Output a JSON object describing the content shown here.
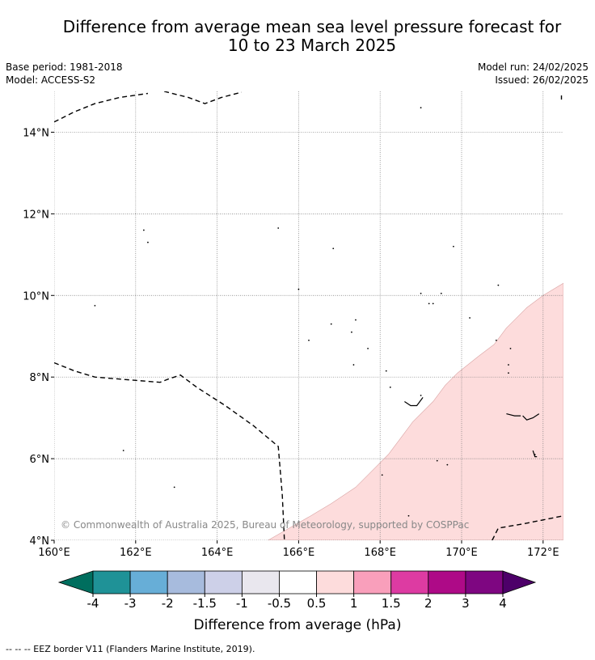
{
  "title_line1": "Difference from average mean sea level pressure forecast for",
  "title_line2": "10 to 23 March 2025",
  "base_period": "Base period: 1981-2018",
  "model": "Model: ACCESS-S2",
  "model_run": "Model run: 24/02/2025",
  "issued": "Issued: 26/02/2025",
  "copyright": "© Commonwealth of Australia 2025, Bureau of Meteorology, supported by COSPPac",
  "map": {
    "lon_range": [
      160,
      172.5
    ],
    "lat_range": [
      4,
      15
    ],
    "lon_ticks": [
      {
        "value": 160,
        "label": "160°E"
      },
      {
        "value": 162,
        "label": "162°E"
      },
      {
        "value": 164,
        "label": "164°E"
      },
      {
        "value": 166,
        "label": "166°E"
      },
      {
        "value": 168,
        "label": "168°E"
      },
      {
        "value": 170,
        "label": "170°E"
      },
      {
        "value": 172,
        "label": "172°E"
      }
    ],
    "lat_ticks": [
      {
        "value": 4,
        "label": "4°N"
      },
      {
        "value": 6,
        "label": "6°N"
      },
      {
        "value": 8,
        "label": "8°N"
      },
      {
        "value": 10,
        "label": "10°N"
      },
      {
        "value": 12,
        "label": "12°N"
      },
      {
        "value": 14,
        "label": "14°N"
      }
    ],
    "gridlines": true,
    "anomaly_fill_color": "#fddcdc",
    "anomaly_region": [
      [
        165.25,
        4
      ],
      [
        165.6,
        4.2
      ],
      [
        166.3,
        4.6
      ],
      [
        166.8,
        4.9
      ],
      [
        167.4,
        5.3
      ],
      [
        167.9,
        5.8
      ],
      [
        168.2,
        6.1
      ],
      [
        168.5,
        6.5
      ],
      [
        168.8,
        6.9
      ],
      [
        169.3,
        7.4
      ],
      [
        169.6,
        7.8
      ],
      [
        169.9,
        8.1
      ],
      [
        170.4,
        8.5
      ],
      [
        170.8,
        8.8
      ],
      [
        171.1,
        9.2
      ],
      [
        171.6,
        9.7
      ],
      [
        172.0,
        10.0
      ],
      [
        172.5,
        10.3
      ],
      [
        172.5,
        4
      ],
      [
        165.25,
        4
      ]
    ],
    "eez_lines": [
      [
        [
          160,
          14.25
        ],
        [
          160.5,
          14.5
        ],
        [
          161,
          14.7
        ],
        [
          161.6,
          14.85
        ],
        [
          162.3,
          14.95
        ]
      ],
      [
        [
          162.7,
          15
        ],
        [
          163.3,
          14.85
        ],
        [
          163.7,
          14.7
        ],
        [
          164.1,
          14.85
        ],
        [
          164.6,
          14.98
        ]
      ],
      [
        [
          160,
          8.35
        ],
        [
          160.5,
          8.15
        ],
        [
          161,
          8.0
        ],
        [
          162.6,
          7.87
        ],
        [
          162.8,
          7.95
        ],
        [
          163.1,
          8.05
        ],
        [
          163.5,
          7.75
        ],
        [
          164.2,
          7.3
        ],
        [
          164.9,
          6.8
        ],
        [
          165.5,
          6.3
        ],
        [
          165.6,
          5.1
        ],
        [
          165.65,
          4
        ]
      ],
      [
        [
          170.75,
          4.0
        ],
        [
          170.9,
          4.3
        ],
        [
          171.5,
          4.4
        ],
        [
          172.0,
          4.5
        ],
        [
          172.5,
          4.6
        ]
      ],
      [
        [
          172.45,
          14.9
        ],
        [
          172.45,
          14.8
        ]
      ]
    ],
    "islands": [
      [
        169.0,
        14.6
      ],
      [
        162.2,
        11.6
      ],
      [
        162.3,
        11.3
      ],
      [
        165.5,
        11.65
      ],
      [
        166.85,
        11.15
      ],
      [
        169.8,
        11.2
      ],
      [
        166,
        10.15
      ],
      [
        170.9,
        10.25
      ],
      [
        169.0,
        10.05
      ],
      [
        169.5,
        10.05
      ],
      [
        169.2,
        9.8
      ],
      [
        169.3,
        9.8
      ],
      [
        161,
        9.75
      ],
      [
        170.2,
        9.45
      ],
      [
        167.4,
        9.4
      ],
      [
        166.8,
        9.3
      ],
      [
        167.3,
        9.1
      ],
      [
        166.25,
        8.9
      ],
      [
        170.85,
        8.9
      ],
      [
        171.2,
        8.7
      ],
      [
        167.7,
        8.7
      ],
      [
        167.35,
        8.3
      ],
      [
        171.15,
        8.3
      ],
      [
        171.15,
        8.1
      ],
      [
        168.15,
        8.15
      ],
      [
        168.25,
        7.75
      ],
      [
        169.0,
        7.55
      ],
      [
        161.7,
        6.2
      ],
      [
        169.65,
        5.85
      ],
      [
        169.4,
        5.95
      ],
      [
        171.8,
        6.1
      ],
      [
        162.95,
        5.3
      ],
      [
        168.05,
        5.6
      ],
      [
        168.7,
        4.6
      ]
    ],
    "island_outlines": [
      [
        [
          168.6,
          7.4
        ],
        [
          168.75,
          7.3
        ],
        [
          168.9,
          7.3
        ],
        [
          169.05,
          7.5
        ]
      ],
      [
        [
          171.1,
          7.1
        ],
        [
          171.3,
          7.05
        ],
        [
          171.45,
          7.05
        ]
      ],
      [
        [
          171.5,
          7.05
        ],
        [
          171.6,
          6.95
        ],
        [
          171.75,
          7.0
        ],
        [
          171.9,
          7.1
        ]
      ],
      [
        [
          171.75,
          6.2
        ],
        [
          171.8,
          6.05
        ],
        [
          171.85,
          6.05
        ]
      ]
    ]
  },
  "colorbar": {
    "label": "Difference from average (hPa)",
    "tick_labels": [
      "-4",
      "-3",
      "-2",
      "-1.5",
      "-1",
      "-0.5",
      "0.5",
      "1",
      "1.5",
      "2",
      "3",
      "4"
    ],
    "colors": [
      "#1f9297",
      "#67aed7",
      "#a7bbdd",
      "#cdd0e8",
      "#e9e7ee",
      "#ffffff",
      "#fddcdc",
      "#f99fbb",
      "#dd3ba2",
      "#ae0a87",
      "#7e0681"
    ],
    "under_color": "#006e5e",
    "over_color": "#4d0069"
  },
  "footer": "-- -- -- EEZ border V11 (Flanders Marine Institute, 2019)."
}
